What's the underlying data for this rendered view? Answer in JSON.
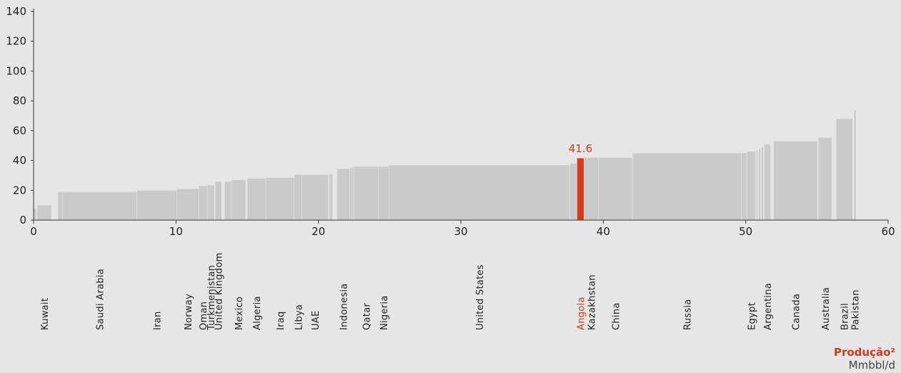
{
  "chart_data": {
    "type": "bar",
    "subtype": "variable-width",
    "xlim": [
      0,
      60
    ],
    "ylim": [
      0,
      140
    ],
    "x_ticks": [
      0,
      10,
      20,
      30,
      40,
      50,
      60
    ],
    "y_ticks": [
      0,
      20,
      40,
      60,
      80,
      100,
      120,
      140
    ],
    "xlabel": "Produção²",
    "xunit": "Mmbbl/d",
    "highlight_color": "#d4391a",
    "bar_color": "#cacaca",
    "highlight_label": "41.6",
    "bars": [
      {
        "x0": 0.0,
        "x1": 0.2,
        "y": 8
      },
      {
        "x0": 0.25,
        "x1": 1.25,
        "y": 10,
        "label": "Kuwait"
      },
      {
        "x0": 1.7,
        "x1": 2.05,
        "y": 19
      },
      {
        "x0": 2.05,
        "x1": 7.25,
        "y": 19,
        "label": "Saudi Arabia"
      },
      {
        "x0": 7.25,
        "x1": 10.05,
        "y": 20,
        "label": "Iran"
      },
      {
        "x0": 10.05,
        "x1": 11.6,
        "y": 21,
        "label": "Norway"
      },
      {
        "x0": 11.6,
        "x1": 12.2,
        "y": 23,
        "label": "Oman"
      },
      {
        "x0": 12.2,
        "x1": 12.7,
        "y": 23.5,
        "label": "Turkmenistan"
      },
      {
        "x0": 12.75,
        "x1": 13.2,
        "y": 26,
        "label": "United Kingdom"
      },
      {
        "x0": 13.4,
        "x1": 13.9,
        "y": 26
      },
      {
        "x0": 13.9,
        "x1": 14.9,
        "y": 27,
        "label": "Mexico"
      },
      {
        "x0": 15.0,
        "x1": 16.3,
        "y": 28,
        "label": "Algeria"
      },
      {
        "x0": 16.3,
        "x1": 18.3,
        "y": 28.5,
        "label": "Iraq"
      },
      {
        "x0": 18.3,
        "x1": 18.85,
        "y": 30.5,
        "label": "Libya"
      },
      {
        "x0": 18.85,
        "x1": 20.7,
        "y": 30.5,
        "label": "UAE"
      },
      {
        "x0": 20.75,
        "x1": 21.0,
        "y": 31
      },
      {
        "x0": 21.3,
        "x1": 22.2,
        "y": 34.5,
        "label": "Indonesia"
      },
      {
        "x0": 22.2,
        "x1": 22.35,
        "y": 35
      },
      {
        "x0": 22.35,
        "x1": 22.5,
        "y": 35.5
      },
      {
        "x0": 22.5,
        "x1": 24.2,
        "y": 36,
        "label": "Qatar"
      },
      {
        "x0": 24.2,
        "x1": 24.95,
        "y": 36,
        "label": "Nigeria"
      },
      {
        "x0": 24.95,
        "x1": 37.65,
        "y": 37,
        "label": "United States"
      },
      {
        "x0": 37.65,
        "x1": 38.15,
        "y": 38
      },
      {
        "x0": 38.15,
        "x1": 38.65,
        "y": 41.6,
        "label": "Angola",
        "highlight": true
      },
      {
        "x0": 38.65,
        "x1": 39.65,
        "y": 42,
        "label": "Kazakhstan"
      },
      {
        "x0": 39.65,
        "x1": 42.05,
        "y": 42,
        "label": "China"
      },
      {
        "x0": 42.05,
        "x1": 49.7,
        "y": 45,
        "label": "Russia"
      },
      {
        "x0": 49.7,
        "x1": 50.1,
        "y": 45
      },
      {
        "x0": 50.1,
        "x1": 50.7,
        "y": 46,
        "label": "Egypt"
      },
      {
        "x0": 50.75,
        "x1": 50.85,
        "y": 47
      },
      {
        "x0": 50.9,
        "x1": 51.05,
        "y": 48
      },
      {
        "x0": 51.1,
        "x1": 51.25,
        "y": 49
      },
      {
        "x0": 51.3,
        "x1": 51.75,
        "y": 51,
        "label": "Argentina"
      },
      {
        "x0": 51.95,
        "x1": 55.05,
        "y": 53,
        "label": "Canada"
      },
      {
        "x0": 55.1,
        "x1": 56.05,
        "y": 55.5,
        "label": "Australia"
      },
      {
        "x0": 56.35,
        "x1": 57.5,
        "y": 68,
        "label": "Brazil"
      },
      {
        "x0": 57.6,
        "x1": 57.75,
        "y": 74,
        "label": "Pakistan"
      }
    ]
  }
}
